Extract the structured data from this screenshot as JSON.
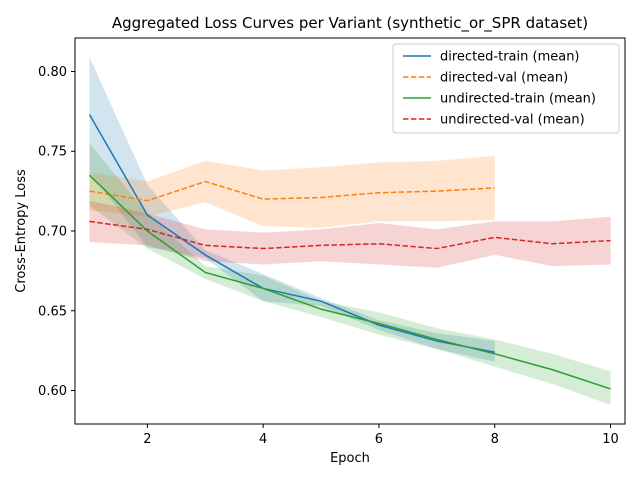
{
  "chart_data": {
    "type": "line",
    "title": "Aggregated Loss Curves per Variant (synthetic_or_SPR dataset)",
    "xlabel": "Epoch",
    "ylabel": "Cross-Entropy Loss",
    "xlim": [
      0.75,
      10.25
    ],
    "ylim": [
      0.579,
      0.821
    ],
    "xticks": [
      2,
      4,
      6,
      8,
      10
    ],
    "yticks": [
      0.6,
      0.65,
      0.7,
      0.75,
      0.8
    ],
    "ytick_labels": [
      "0.60",
      "0.65",
      "0.70",
      "0.75",
      "0.80"
    ],
    "grid": false,
    "legend_position": "top-right",
    "series": [
      {
        "name": "directed-train (mean)",
        "color": "#1f77b4",
        "dash": "solid",
        "x": [
          1,
          2,
          3,
          4,
          5,
          6,
          7,
          8
        ],
        "y": [
          0.773,
          0.71,
          0.685,
          0.664,
          0.656,
          0.641,
          0.631,
          0.624
        ],
        "lower": [
          0.737,
          0.69,
          0.683,
          0.656,
          0.653,
          0.638,
          0.626,
          0.618
        ],
        "upper": [
          0.809,
          0.729,
          0.688,
          0.673,
          0.658,
          0.644,
          0.636,
          0.631
        ]
      },
      {
        "name": "directed-val (mean)",
        "color": "#ff7f0e",
        "dash": "dashed",
        "x": [
          1,
          2,
          3,
          4,
          5,
          6,
          7,
          8
        ],
        "y": [
          0.725,
          0.719,
          0.731,
          0.72,
          0.721,
          0.724,
          0.725,
          0.727
        ],
        "lower": [
          0.713,
          0.709,
          0.718,
          0.703,
          0.702,
          0.706,
          0.706,
          0.707
        ],
        "upper": [
          0.737,
          0.731,
          0.744,
          0.738,
          0.74,
          0.743,
          0.744,
          0.747
        ]
      },
      {
        "name": "undirected-train (mean)",
        "color": "#2ca02c",
        "dash": "solid",
        "x": [
          1,
          2,
          3,
          4,
          5,
          6,
          7,
          8,
          9,
          10
        ],
        "y": [
          0.735,
          0.7,
          0.674,
          0.664,
          0.651,
          0.642,
          0.632,
          0.623,
          0.613,
          0.601
        ],
        "lower": [
          0.716,
          0.689,
          0.67,
          0.656,
          0.646,
          0.635,
          0.626,
          0.615,
          0.604,
          0.591
        ],
        "upper": [
          0.755,
          0.711,
          0.678,
          0.672,
          0.656,
          0.649,
          0.639,
          0.632,
          0.623,
          0.612
        ]
      },
      {
        "name": "undirected-val (mean)",
        "color": "#d62728",
        "dash": "dashed",
        "x": [
          1,
          2,
          3,
          4,
          5,
          6,
          7,
          8,
          9,
          10
        ],
        "y": [
          0.706,
          0.701,
          0.691,
          0.689,
          0.691,
          0.692,
          0.689,
          0.696,
          0.692,
          0.694
        ],
        "lower": [
          0.693,
          0.691,
          0.681,
          0.679,
          0.681,
          0.679,
          0.677,
          0.685,
          0.678,
          0.679
        ],
        "upper": [
          0.719,
          0.711,
          0.701,
          0.699,
          0.701,
          0.705,
          0.701,
          0.706,
          0.706,
          0.709
        ]
      }
    ]
  }
}
